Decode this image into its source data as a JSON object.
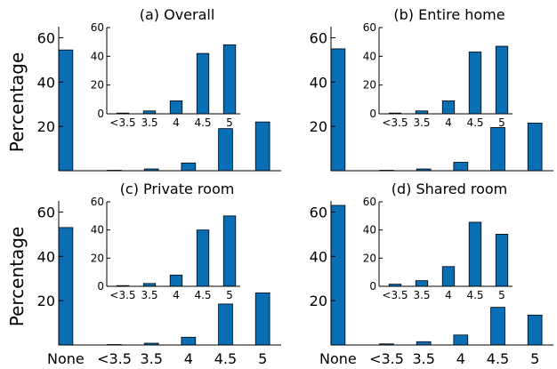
{
  "chart_data": [
    {
      "type": "bar",
      "title": "(a) Overall",
      "ylabel": "Percentage",
      "categories": [
        "None",
        "<3.5",
        "3.5",
        "4",
        "4.5",
        "5"
      ],
      "values": [
        54.5,
        0.2,
        0.8,
        3.5,
        19,
        22
      ],
      "ylim": [
        0,
        65
      ],
      "yticks": [
        20,
        40,
        60
      ],
      "inset": {
        "categories": [
          "<3.5",
          "3.5",
          "4",
          "4.5",
          "5"
        ],
        "values": [
          0.5,
          2,
          9,
          42,
          48
        ],
        "ylim": [
          0,
          60
        ],
        "yticks": [
          0,
          20,
          40,
          60
        ]
      }
    },
    {
      "type": "bar",
      "title": "(b) Entire home",
      "ylabel": "",
      "categories": [
        "None",
        "<3.5",
        "3.5",
        "4",
        "4.5",
        "5"
      ],
      "values": [
        55,
        0.2,
        0.8,
        3.8,
        19.5,
        21.5
      ],
      "ylim": [
        0,
        65
      ],
      "yticks": [
        20,
        40,
        60
      ],
      "inset": {
        "categories": [
          "<3.5",
          "3.5",
          "4",
          "4.5",
          "5"
        ],
        "values": [
          0.5,
          2,
          9,
          43,
          47
        ],
        "ylim": [
          0,
          60
        ],
        "yticks": [
          0,
          20,
          40,
          60
        ]
      }
    },
    {
      "type": "bar",
      "title": "(c) Private room",
      "ylabel": "Percentage",
      "categories": [
        "None",
        "<3.5",
        "3.5",
        "4",
        "4.5",
        "5"
      ],
      "values": [
        53,
        0.2,
        0.8,
        3.5,
        18.5,
        23.5
      ],
      "ylim": [
        0,
        65
      ],
      "yticks": [
        20,
        40,
        60
      ],
      "inset": {
        "categories": [
          "<3.5",
          "3.5",
          "4",
          "4.5",
          "5"
        ],
        "values": [
          0.5,
          2,
          8,
          40,
          50
        ],
        "ylim": [
          0,
          60
        ],
        "yticks": [
          0,
          20,
          40,
          60
        ]
      }
    },
    {
      "type": "bar",
      "title": "(d) Shared room",
      "ylabel": "",
      "categories": [
        "None",
        "<3.5",
        "3.5",
        "4",
        "4.5",
        "5"
      ],
      "values": [
        63,
        0.5,
        1.5,
        4.5,
        17,
        13.5
      ],
      "ylim": [
        0,
        65
      ],
      "yticks": [
        20,
        40,
        60
      ],
      "inset": {
        "categories": [
          "<3.5",
          "3.5",
          "4",
          "4.5",
          "5"
        ],
        "values": [
          1.5,
          4,
          14,
          45.5,
          37
        ],
        "ylim": [
          0,
          60
        ],
        "yticks": [
          0,
          20,
          40,
          60
        ]
      }
    }
  ],
  "colors": {
    "bar": "#0a6eb4",
    "edge": "#000000"
  }
}
